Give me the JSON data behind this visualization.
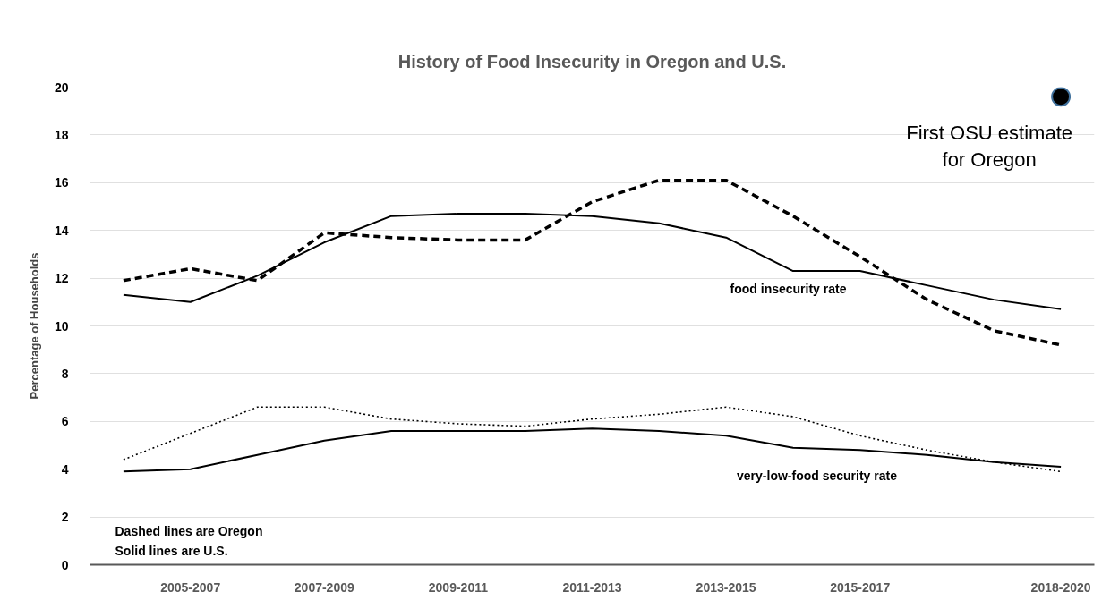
{
  "chart_data": {
    "type": "line",
    "title": "History of Food Insecurity in Oregon and U.S.",
    "ylabel": "Percentage of Households",
    "categories": [
      null,
      "2005-2007",
      null,
      "2007-2009",
      null,
      "2009-2011",
      null,
      "2011-2013",
      null,
      "2013-2015",
      null,
      "2015-2017",
      null,
      null,
      "2018-2020"
    ],
    "series": [
      {
        "color": "#000000",
        "line_style": "solid",
        "values": [
          11.3,
          11.0,
          12.1,
          13.5,
          14.6,
          14.7,
          14.7,
          14.6,
          14.3,
          13.7,
          12.3,
          12.3,
          11.7,
          11.1,
          10.7
        ]
      },
      {
        "color": "#000000",
        "line_style": "dashed",
        "values": [
          11.9,
          12.4,
          11.9,
          13.9,
          13.7,
          13.6,
          13.6,
          15.2,
          16.1,
          16.1,
          14.6,
          12.9,
          11.1,
          9.8,
          9.2
        ]
      },
      {
        "color": "#000000",
        "line_style": "solid",
        "values": [
          3.9,
          4.0,
          4.6,
          5.2,
          5.6,
          5.6,
          5.6,
          5.7,
          5.6,
          5.4,
          4.9,
          4.8,
          4.6,
          4.3,
          4.1
        ]
      },
      {
        "color": "#000000",
        "line_style": "dotted",
        "values": [
          4.4,
          5.5,
          6.6,
          6.6,
          6.1,
          5.9,
          5.8,
          6.1,
          6.3,
          6.6,
          6.2,
          5.4,
          4.8,
          4.3,
          3.9
        ]
      },
      {
        "type": "scatter",
        "name": "First OSU estimate for Oregon",
        "color": "#000000",
        "marker": "circle",
        "values": [
          null,
          null,
          null,
          null,
          null,
          null,
          null,
          null,
          null,
          null,
          null,
          null,
          null,
          null,
          19.6
        ]
      }
    ],
    "ylim": [
      0,
      20
    ],
    "yticks": [
      0,
      2,
      4,
      6,
      8,
      10,
      12,
      14,
      16,
      18,
      20
    ],
    "grid": "y",
    "marker": "none",
    "annotations": [
      "food insecurity rate",
      "very-low-food security rate",
      "Dashed lines are Oregon",
      "Solid lines are U.S."
    ]
  }
}
